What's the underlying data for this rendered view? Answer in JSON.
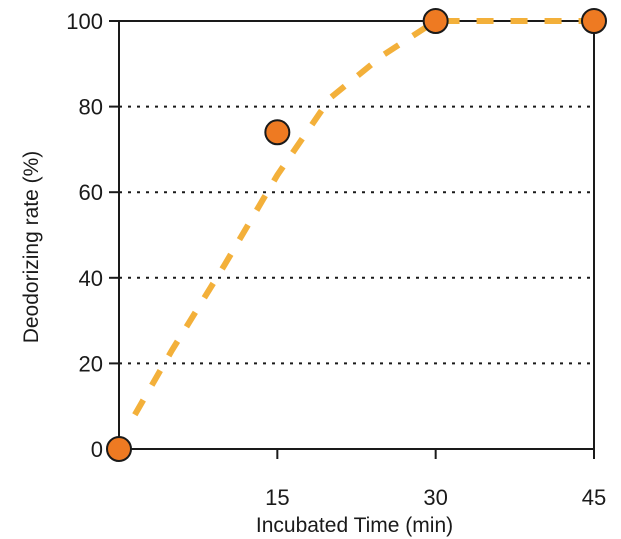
{
  "chart_data": {
    "type": "line",
    "title": "",
    "xlabel": "Incubated Time (min)",
    "ylabel": "Deodorizing rate (%)",
    "x": [
      0,
      15,
      30,
      45
    ],
    "series": [
      {
        "values": [
          0,
          74,
          100,
          100
        ]
      }
    ],
    "fit_curve": {
      "x": [
        1.5,
        5,
        10,
        15,
        20,
        25,
        30,
        45
      ],
      "y": [
        8,
        23,
        43,
        64,
        82,
        92,
        100,
        100
      ]
    },
    "xlim": [
      0,
      45
    ],
    "ylim": [
      0,
      100
    ],
    "xticks": [
      15,
      30,
      45
    ],
    "yticks": [
      0,
      20,
      40,
      60,
      80,
      100
    ],
    "xtick_labels": [
      "15",
      "30",
      "45"
    ],
    "ytick_labels": [
      "0",
      "20",
      "40",
      "60",
      "80",
      "100"
    ],
    "grid": "horizontal dotted",
    "legend": "none",
    "colors": {
      "marker_fill": "#EE7A22",
      "marker_edge": "#1a1a1a",
      "line": "#F3B03A",
      "axis": "#1a1a1a"
    }
  }
}
